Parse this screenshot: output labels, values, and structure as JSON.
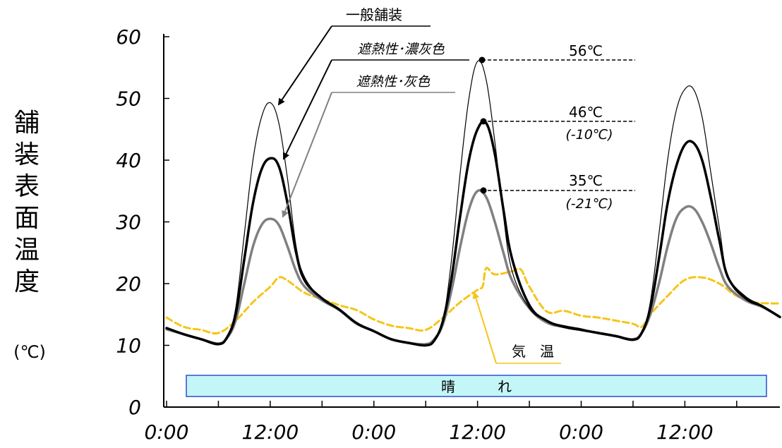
{
  "chart_data": {
    "type": "line",
    "ylabel": "舗装表面温度",
    "yunit": "(℃)",
    "ylim": [
      0,
      60
    ],
    "yticks": [
      0,
      10,
      20,
      30,
      40,
      50,
      60
    ],
    "xlim": [
      0,
      71
    ],
    "xtick_labels": [
      {
        "x": 0,
        "label": "0:00"
      },
      {
        "x": 12,
        "label": "12:00"
      },
      {
        "x": 24,
        "label": "0:00"
      },
      {
        "x": 36,
        "label": "12:00"
      },
      {
        "x": 48,
        "label": "0:00"
      },
      {
        "x": 60,
        "label": "12:00"
      }
    ],
    "series": [
      {
        "name": "一般舗装",
        "color": "#000000",
        "points": [
          [
            0,
            12.8
          ],
          [
            2,
            11.8
          ],
          [
            4,
            11.0
          ],
          [
            6,
            10.3
          ],
          [
            7,
            11.5
          ],
          [
            8,
            16
          ],
          [
            9,
            28
          ],
          [
            10,
            40
          ],
          [
            11,
            47
          ],
          [
            12,
            49.3
          ],
          [
            13,
            46
          ],
          [
            14,
            37
          ],
          [
            15,
            26
          ],
          [
            16,
            21
          ],
          [
            18,
            17.5
          ],
          [
            20,
            15.8
          ],
          [
            22,
            13.6
          ],
          [
            24,
            12.3
          ],
          [
            26,
            11.0
          ],
          [
            28,
            10.4
          ],
          [
            30,
            10.0
          ],
          [
            31,
            10.8
          ],
          [
            32,
            14
          ],
          [
            33,
            24
          ],
          [
            34,
            38
          ],
          [
            35,
            50
          ],
          [
            36,
            56
          ],
          [
            37,
            53
          ],
          [
            38,
            43
          ],
          [
            39,
            31
          ],
          [
            40,
            22
          ],
          [
            42,
            16
          ],
          [
            44,
            14
          ],
          [
            46,
            13.2
          ],
          [
            48,
            12.7
          ],
          [
            50,
            12.0
          ],
          [
            52,
            11.6
          ],
          [
            54,
            10.8
          ],
          [
            55,
            12
          ],
          [
            56,
            17
          ],
          [
            57,
            28
          ],
          [
            58,
            40
          ],
          [
            59,
            48
          ],
          [
            60,
            51.5
          ],
          [
            61,
            51.5
          ],
          [
            62,
            47
          ],
          [
            63,
            38
          ],
          [
            64,
            29
          ],
          [
            65,
            21
          ],
          [
            67,
            17.5
          ],
          [
            69,
            16.2
          ],
          [
            71,
            14.6
          ]
        ]
      },
      {
        "name": "遮熱性･濃灰色",
        "color": "#000000",
        "points": [
          [
            0,
            12.8
          ],
          [
            2,
            11.8
          ],
          [
            4,
            11.0
          ],
          [
            6,
            10.2
          ],
          [
            7,
            11.3
          ],
          [
            8,
            15
          ],
          [
            9,
            24
          ],
          [
            10,
            33
          ],
          [
            11,
            38.5
          ],
          [
            12,
            40.3
          ],
          [
            13,
            39
          ],
          [
            14,
            33
          ],
          [
            15,
            25
          ],
          [
            16,
            20.5
          ],
          [
            18,
            17.6
          ],
          [
            20,
            15.8
          ],
          [
            22,
            13.6
          ],
          [
            24,
            12.3
          ],
          [
            26,
            11.0
          ],
          [
            28,
            10.4
          ],
          [
            30,
            10.0
          ],
          [
            31,
            10.8
          ],
          [
            32,
            14
          ],
          [
            33,
            21
          ],
          [
            34,
            31
          ],
          [
            35,
            40
          ],
          [
            36,
            45
          ],
          [
            37,
            46
          ],
          [
            38,
            41
          ],
          [
            39,
            32
          ],
          [
            40,
            24
          ],
          [
            42,
            16.5
          ],
          [
            44,
            14
          ],
          [
            46,
            13.0
          ],
          [
            48,
            12.5
          ],
          [
            50,
            12.0
          ],
          [
            52,
            11.5
          ],
          [
            54,
            10.9
          ],
          [
            55,
            12
          ],
          [
            56,
            16
          ],
          [
            57,
            24
          ],
          [
            58,
            33
          ],
          [
            59,
            39
          ],
          [
            60,
            42.5
          ],
          [
            61,
            42.8
          ],
          [
            62,
            40
          ],
          [
            63,
            34
          ],
          [
            64,
            27
          ],
          [
            65,
            21
          ],
          [
            67,
            17.8
          ],
          [
            69,
            16.3
          ],
          [
            71,
            14.6
          ]
        ]
      },
      {
        "name": "遮熱性･灰色",
        "color": "#808080",
        "points": [
          [
            0,
            12.6
          ],
          [
            2,
            11.8
          ],
          [
            4,
            11.0
          ],
          [
            6,
            10.3
          ],
          [
            7,
            11.2
          ],
          [
            8,
            14
          ],
          [
            9,
            20
          ],
          [
            10,
            26
          ],
          [
            11,
            29.5
          ],
          [
            12,
            30.5
          ],
          [
            13,
            29.5
          ],
          [
            14,
            26
          ],
          [
            15,
            22
          ],
          [
            16,
            19.5
          ],
          [
            18,
            17.3
          ],
          [
            20,
            15.7
          ],
          [
            22,
            13.5
          ],
          [
            24,
            12.3
          ],
          [
            26,
            11.0
          ],
          [
            28,
            10.4
          ],
          [
            30,
            10.2
          ],
          [
            31,
            11
          ],
          [
            32,
            13.5
          ],
          [
            33,
            19
          ],
          [
            34,
            26
          ],
          [
            35,
            32
          ],
          [
            36,
            35
          ],
          [
            37,
            34
          ],
          [
            38,
            30
          ],
          [
            39,
            25
          ],
          [
            40,
            20.5
          ],
          [
            42,
            16
          ],
          [
            44,
            13.7
          ],
          [
            46,
            13.0
          ],
          [
            48,
            12.5
          ],
          [
            50,
            12.0
          ],
          [
            52,
            11.5
          ],
          [
            54,
            11.0
          ],
          [
            55,
            12
          ],
          [
            56,
            15
          ],
          [
            57,
            20
          ],
          [
            58,
            26
          ],
          [
            59,
            30.5
          ],
          [
            60,
            32.3
          ],
          [
            61,
            32.2
          ],
          [
            62,
            30
          ],
          [
            63,
            26.5
          ],
          [
            64,
            22.5
          ],
          [
            65,
            19.5
          ],
          [
            67,
            17.3
          ],
          [
            69,
            16.2
          ],
          [
            71,
            14.6
          ]
        ]
      },
      {
        "name": "気温",
        "color": "#f5c518",
        "points": [
          [
            0,
            14.5
          ],
          [
            2,
            13
          ],
          [
            4,
            12.5
          ],
          [
            6,
            12
          ],
          [
            8,
            14
          ],
          [
            10,
            17
          ],
          [
            12,
            19.5
          ],
          [
            13,
            21
          ],
          [
            14,
            20.5
          ],
          [
            16,
            18.5
          ],
          [
            18,
            17.5
          ],
          [
            20,
            16.5
          ],
          [
            22,
            15.7
          ],
          [
            24,
            14.2
          ],
          [
            26,
            13.2
          ],
          [
            28,
            12.8
          ],
          [
            30,
            12.5
          ],
          [
            32,
            14.5
          ],
          [
            34,
            17
          ],
          [
            36,
            19
          ],
          [
            36.6,
            19.6
          ],
          [
            37,
            22.5
          ],
          [
            38,
            21.5
          ],
          [
            40,
            22
          ],
          [
            41,
            22.3
          ],
          [
            42,
            19.5
          ],
          [
            44,
            15.5
          ],
          [
            46,
            15.6
          ],
          [
            48,
            14.8
          ],
          [
            50,
            14.5
          ],
          [
            52,
            14
          ],
          [
            54,
            13.5
          ],
          [
            55,
            13
          ],
          [
            56,
            15
          ],
          [
            58,
            18
          ],
          [
            60,
            20.6
          ],
          [
            62,
            21
          ],
          [
            64,
            20
          ],
          [
            66,
            18
          ],
          [
            68,
            17
          ],
          [
            70,
            16.8
          ],
          [
            71,
            16.8
          ]
        ]
      }
    ],
    "annotations": [
      {
        "label": "56℃",
        "sub": ""
      },
      {
        "label": "46℃",
        "sub": "(-10℃)"
      },
      {
        "label": "35℃",
        "sub": "(-21℃)"
      }
    ],
    "weather_label": "晴　　　れ",
    "air_temp_label": "気　温"
  }
}
